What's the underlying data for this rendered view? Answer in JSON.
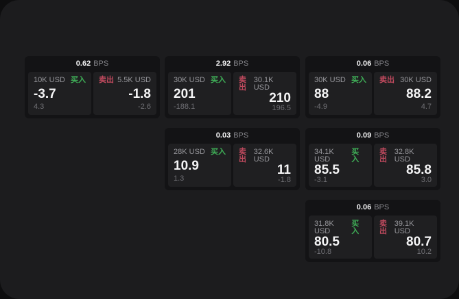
{
  "labels": {
    "bps": "BPS",
    "buy": "买入",
    "sell": "卖出"
  },
  "colors": {
    "buy_green": "#3fae57",
    "sell_red": "#c04a5e",
    "window_bg": "#1c1c1e",
    "card_bg": "#131315",
    "panel_bg": "#1f1f21"
  },
  "cards": [
    {
      "row": 0,
      "col": 0,
      "bps": "0.62",
      "buy": {
        "amount": "10K USD",
        "price": "-3.7",
        "delta": "4.3"
      },
      "sell": {
        "amount": "5.5K USD",
        "price": "-1.8",
        "delta": "-2.6"
      }
    },
    {
      "row": 0,
      "col": 1,
      "bps": "2.92",
      "buy": {
        "amount": "30K USD",
        "price": "201",
        "delta": "-188.1"
      },
      "sell": {
        "amount": "30.1K USD",
        "price": "210",
        "delta": "196.5"
      }
    },
    {
      "row": 0,
      "col": 2,
      "bps": "0.06",
      "buy": {
        "amount": "30K USD",
        "price": "88",
        "delta": "-4.9"
      },
      "sell": {
        "amount": "30K USD",
        "price": "88.2",
        "delta": "4.7"
      }
    },
    {
      "row": 1,
      "col": 1,
      "bps": "0.03",
      "buy": {
        "amount": "28K USD",
        "price": "10.9",
        "delta": "1.3"
      },
      "sell": {
        "amount": "32.6K USD",
        "price": "11",
        "delta": "-1.8"
      }
    },
    {
      "row": 1,
      "col": 2,
      "bps": "0.09",
      "buy": {
        "amount": "34.1K USD",
        "price": "85.5",
        "delta": "-3.1"
      },
      "sell": {
        "amount": "32.8K USD",
        "price": "85.8",
        "delta": "3.0"
      }
    },
    {
      "row": 2,
      "col": 2,
      "bps": "0.06",
      "buy": {
        "amount": "31.8K USD",
        "price": "80.5",
        "delta": "-10.8"
      },
      "sell": {
        "amount": "39.1K USD",
        "price": "80.7",
        "delta": "10.2"
      }
    }
  ]
}
